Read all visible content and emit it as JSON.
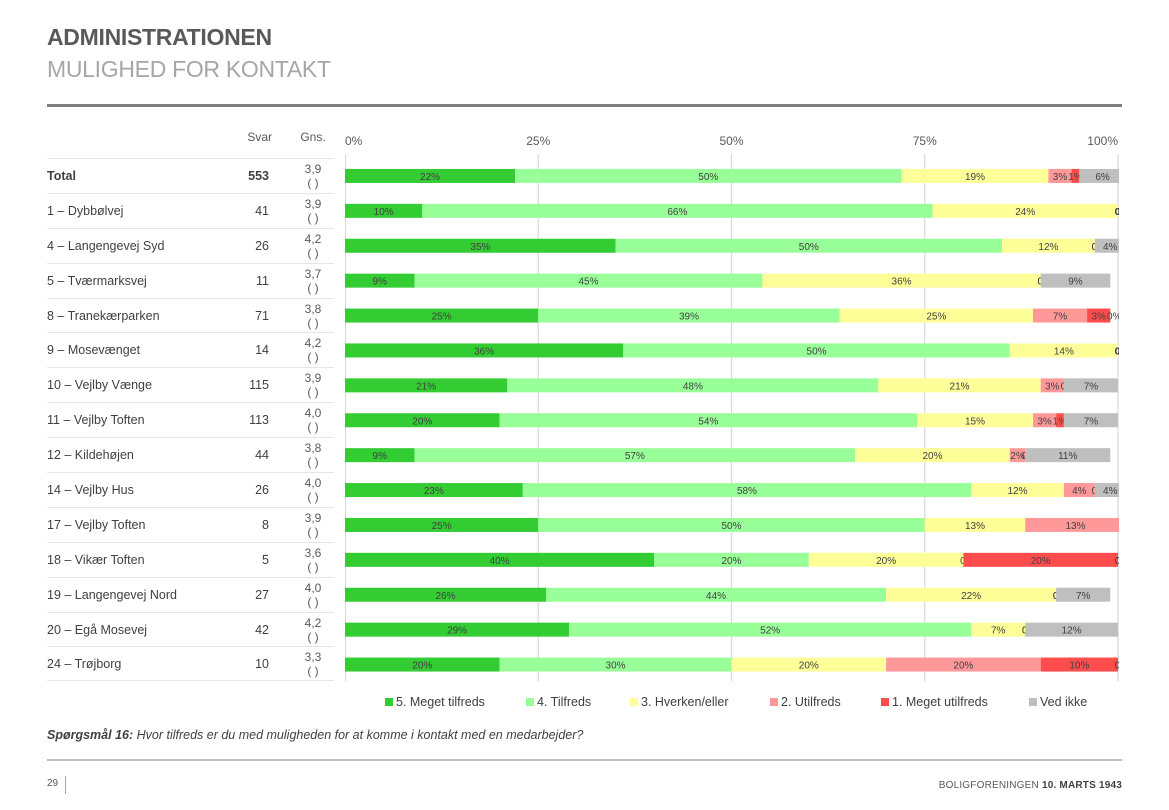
{
  "header": {
    "title": "ADMINISTRATIONEN",
    "subtitle": "MULIGHED FOR KONTAKT"
  },
  "table": {
    "col_svar": "Svar",
    "col_gns": "Gns.",
    "gns_suffix": "( )"
  },
  "question": {
    "label": "Spørgsmål 16:",
    "text": " Hvor tilfreds er du med muligheden for at komme i kontakt med en medarbejder?"
  },
  "footer": {
    "page": "29",
    "org": "BOLIGFORENINGEN ",
    "date": "10. MARTS 1943"
  },
  "colors": {
    "meget_tilfreds": "#33cc33",
    "tilfreds": "#99ff99",
    "hverken": "#ffff99",
    "utilfreds": "#ff9999",
    "meget_utilfreds": "#ff4d4d",
    "ved_ikke": "#bfbfbf",
    "gridline": "#d9d9d9"
  },
  "chart_data": {
    "type": "bar",
    "orientation": "horizontal-stacked-100",
    "title": "MULIGHED FOR KONTAKT",
    "xlabel": "",
    "ylabel": "",
    "xlim": [
      0,
      100
    ],
    "x_ticks": [
      "0%",
      "25%",
      "50%",
      "75%",
      "100%"
    ],
    "grid": true,
    "legend_position": "bottom",
    "series": [
      {
        "name": "5. Meget tilfreds",
        "color": "#33cc33"
      },
      {
        "name": "4. Tilfreds",
        "color": "#99ff99"
      },
      {
        "name": "3. Hverken/eller",
        "color": "#ffff99"
      },
      {
        "name": "2. Utilfreds",
        "color": "#ff9999"
      },
      {
        "name": "1. Meget utilfreds",
        "color": "#ff4d4d"
      },
      {
        "name": "Ved ikke",
        "color": "#bfbfbf"
      }
    ],
    "categories": [
      {
        "name": "Total",
        "svar": "553",
        "gns": "3,9",
        "values": [
          22,
          50,
          19,
          3,
          1,
          6
        ],
        "bold": true
      },
      {
        "name": "1 – Dybbølvej",
        "svar": "41",
        "gns": "3,9",
        "values": [
          10,
          66,
          24,
          0,
          0,
          0
        ]
      },
      {
        "name": "4 – Langengevej Syd",
        "svar": "26",
        "gns": "4,2",
        "values": [
          35,
          50,
          12,
          0,
          0,
          4
        ]
      },
      {
        "name": "5 – Tværmarksvej",
        "svar": "11",
        "gns": "3,7",
        "values": [
          9,
          45,
          36,
          0,
          0,
          9
        ]
      },
      {
        "name": "8 – Tranekærparken",
        "svar": "71",
        "gns": "3,8",
        "values": [
          25,
          39,
          25,
          7,
          3,
          0
        ]
      },
      {
        "name": "9 – Mosevænget",
        "svar": "14",
        "gns": "4,2",
        "values": [
          36,
          50,
          14,
          0,
          0,
          0
        ]
      },
      {
        "name": "10 – Vejlby Vænge",
        "svar": "115",
        "gns": "3,9",
        "values": [
          21,
          48,
          21,
          3,
          0,
          7
        ]
      },
      {
        "name": "11 – Vejlby Toften",
        "svar": "113",
        "gns": "4,0",
        "values": [
          20,
          54,
          15,
          3,
          1,
          7
        ]
      },
      {
        "name": "12 – Kildehøjen",
        "svar": "44",
        "gns": "3,8",
        "values": [
          9,
          57,
          20,
          2,
          0,
          11
        ]
      },
      {
        "name": "14 – Vejlby Hus",
        "svar": "26",
        "gns": "4,0",
        "values": [
          23,
          58,
          12,
          4,
          0,
          4
        ]
      },
      {
        "name": "17 – Vejlby Toften",
        "svar": "8",
        "gns": "3,9",
        "values": [
          25,
          50,
          13,
          13,
          0,
          0
        ]
      },
      {
        "name": "18 – Vikær Toften",
        "svar": "5",
        "gns": "3,6",
        "values": [
          40,
          20,
          20,
          0,
          20,
          0
        ]
      },
      {
        "name": "19 – Langengevej Nord",
        "svar": "27",
        "gns": "4,0",
        "values": [
          26,
          44,
          22,
          0,
          0,
          7
        ]
      },
      {
        "name": "20 – Egå Mosevej",
        "svar": "42",
        "gns": "4,2",
        "values": [
          29,
          52,
          7,
          0,
          0,
          12
        ]
      },
      {
        "name": "24 – Trøjborg",
        "svar": "10",
        "gns": "3,3",
        "values": [
          20,
          30,
          20,
          20,
          10,
          0
        ]
      }
    ]
  }
}
